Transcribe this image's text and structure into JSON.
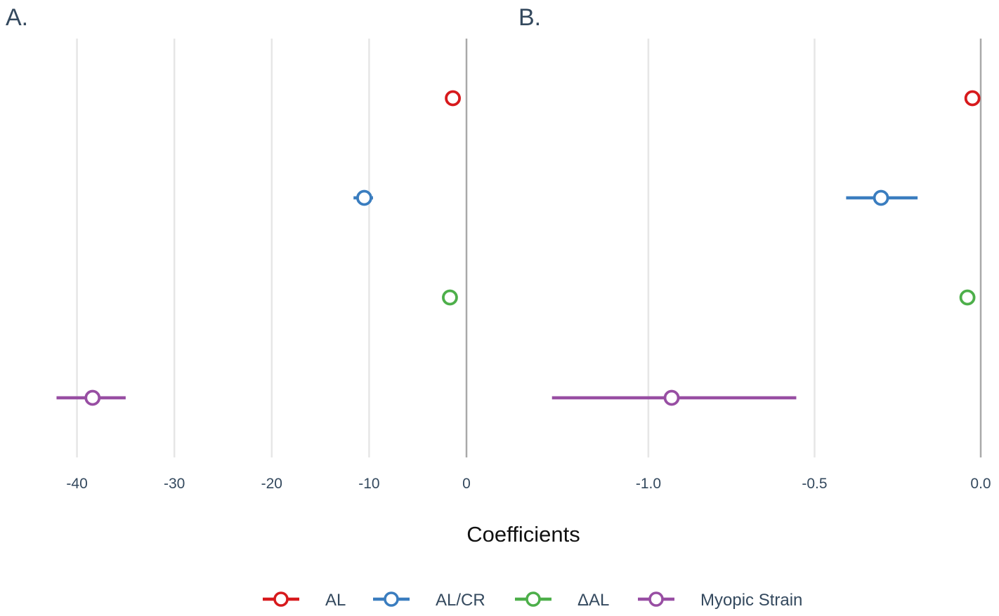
{
  "chart_data": {
    "type": "scatter",
    "subtype": "forest-plot",
    "xlabel": "Coefficients",
    "panels": [
      {
        "label": "A.",
        "xlim": [
          -43,
          0
        ],
        "ticks": [
          -40,
          -30,
          -20,
          -10,
          0
        ],
        "tick_labels": [
          "-40",
          "-30",
          "-20",
          "-10",
          "0"
        ],
        "points": [
          {
            "series": "AL",
            "estimate": -1.4,
            "low": -1.4,
            "high": -1.4
          },
          {
            "series": "AL/CR",
            "estimate": -10.5,
            "low": -11.6,
            "high": -9.6
          },
          {
            "series": "ΔAL",
            "estimate": -1.7,
            "low": -1.7,
            "high": -1.7
          },
          {
            "series": "Myopic Strain",
            "estimate": -38.4,
            "low": -42.1,
            "high": -35.0
          }
        ]
      },
      {
        "label": "B.",
        "xlim": [
          -1.3,
          0
        ],
        "ticks": [
          -1.0,
          -0.5,
          0.0
        ],
        "tick_labels": [
          "-1.0",
          "-0.5",
          "0.0"
        ],
        "points": [
          {
            "series": "AL",
            "estimate": -0.025,
            "low": -0.025,
            "high": -0.025
          },
          {
            "series": "AL/CR",
            "estimate": -0.3,
            "low": -0.405,
            "high": -0.19
          },
          {
            "series": "ΔAL",
            "estimate": -0.04,
            "low": -0.04,
            "high": -0.04
          },
          {
            "series": "Myopic Strain",
            "estimate": -0.93,
            "low": -1.29,
            "high": -0.555
          }
        ]
      }
    ],
    "legend": {
      "position": "bottom",
      "entries": [
        {
          "name": "AL",
          "color": "#d7191c"
        },
        {
          "name": "AL/CR",
          "color": "#3a7dbf"
        },
        {
          "name": "ΔAL",
          "color": "#4daf4a"
        },
        {
          "name": "Myopic Strain",
          "color": "#984ea3"
        }
      ]
    },
    "grid": true
  }
}
